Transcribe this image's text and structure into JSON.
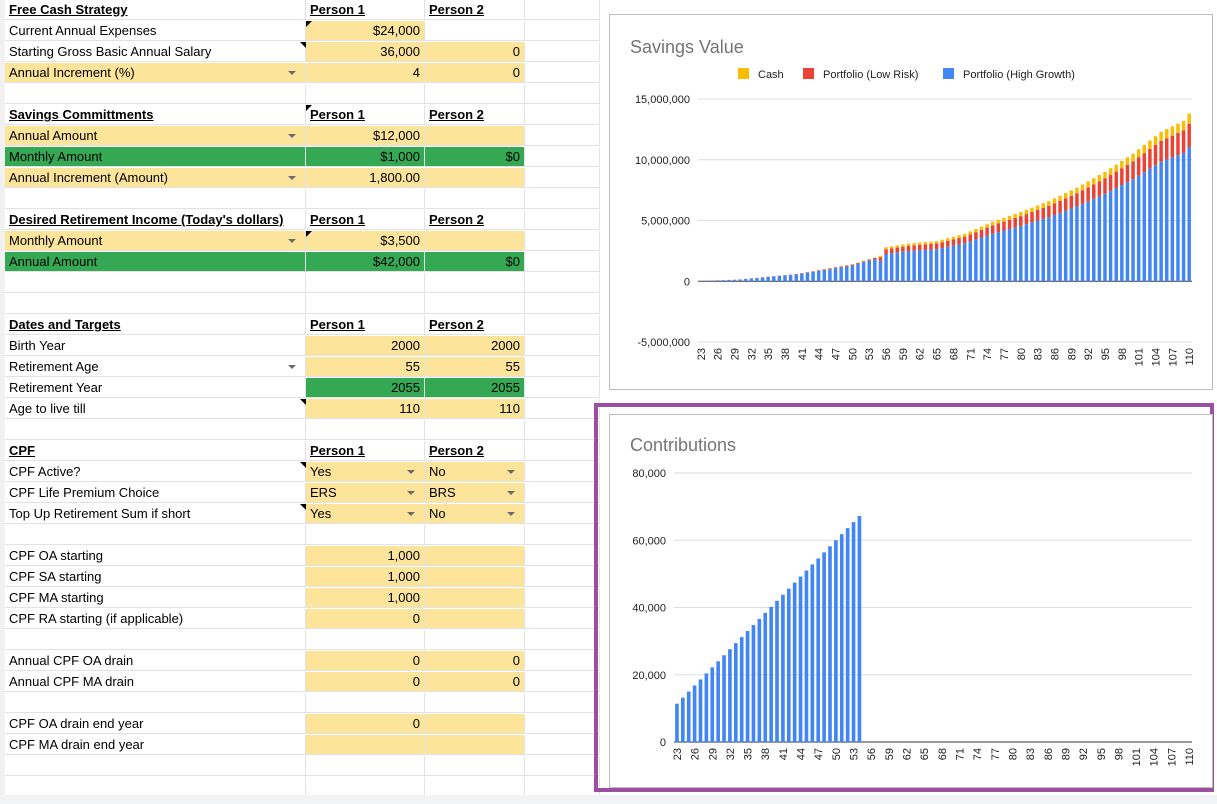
{
  "sheet": {
    "rows": [
      {
        "top": 0,
        "a": "Free Cash Strategy",
        "b": "Person 1",
        "c": "Person 2",
        "hdr": true
      },
      {
        "top": 21,
        "a": "Current Annual Expenses",
        "b": "$24,000",
        "c": "",
        "bcls": "yel",
        "ccls": "",
        "noteB": true
      },
      {
        "top": 42,
        "a": "Starting Gross Basic Annual Salary",
        "b": "36,000",
        "c": "0",
        "bcls": "yel",
        "ccls": "yel",
        "noteA": true
      },
      {
        "top": 63,
        "a": "Annual Increment (%)",
        "b": "4",
        "c": "0",
        "acls": "yel",
        "bcls": "yel",
        "ccls": "yel",
        "ddA": true
      },
      {
        "top": 84,
        "a": "",
        "b": "",
        "c": ""
      },
      {
        "top": 105,
        "a": "Savings Committments",
        "b": "Person 1",
        "c": "Person 2",
        "hdr": true,
        "noteB": true
      },
      {
        "top": 126,
        "a": "Annual Amount",
        "b": "$12,000",
        "c": "",
        "acls": "yel",
        "bcls": "yel",
        "ccls": "yel",
        "ddA": true
      },
      {
        "top": 147,
        "a": "Monthly Amount",
        "b": "$1,000",
        "c": "$0",
        "acls": "grn",
        "bcls": "grn",
        "ccls": "grn"
      },
      {
        "top": 168,
        "a": "Annual Increment (Amount)",
        "b": "1,800.00",
        "c": "",
        "acls": "yel",
        "bcls": "yel",
        "ccls": "yel",
        "ddA": true
      },
      {
        "top": 189,
        "a": "",
        "b": "",
        "c": ""
      },
      {
        "top": 210,
        "a": "Desired Retirement Income (Today's dollars)",
        "b": "Person 1",
        "c": "Person 2",
        "hdr": true
      },
      {
        "top": 231,
        "a": "Monthly Amount",
        "b": "$3,500",
        "c": "",
        "acls": "yel",
        "bcls": "yel",
        "ccls": "yel",
        "ddA": true,
        "noteB": true
      },
      {
        "top": 252,
        "a": "Annual Amount",
        "b": "$42,000",
        "c": "$0",
        "acls": "grn",
        "bcls": "grn",
        "ccls": "grn"
      },
      {
        "top": 273,
        "a": "",
        "b": "",
        "c": ""
      },
      {
        "top": 294,
        "a": "",
        "b": "",
        "c": ""
      },
      {
        "top": 315,
        "a": "Dates and Targets",
        "b": "Person 1",
        "c": "Person 2",
        "hdr": true
      },
      {
        "top": 336,
        "a": "Birth Year",
        "b": "2000",
        "c": "2000",
        "bcls": "yel",
        "ccls": "yel"
      },
      {
        "top": 357,
        "a": "Retirement Age",
        "b": "55",
        "c": "55",
        "bcls": "yel",
        "ccls": "yel",
        "ddA": true
      },
      {
        "top": 378,
        "a": "Retirement Year",
        "b": "2055",
        "c": "2055",
        "bcls": "grn",
        "ccls": "grn"
      },
      {
        "top": 399,
        "a": "Age to live till",
        "b": "110",
        "c": "110",
        "bcls": "yel",
        "ccls": "yel",
        "noteA": true
      },
      {
        "top": 420,
        "a": "",
        "b": "",
        "c": ""
      },
      {
        "top": 441,
        "a": "CPF",
        "b": "Person 1",
        "c": "Person 2",
        "hdr": true
      },
      {
        "top": 462,
        "a": "CPF Active?",
        "b": "Yes",
        "c": "No",
        "bcls": "yel",
        "ccls": "yel",
        "ddB": true,
        "ddC": true,
        "noteA": true,
        "left": true
      },
      {
        "top": 483,
        "a": "CPF Life Premium Choice",
        "b": "ERS",
        "c": "BRS",
        "bcls": "yel",
        "ccls": "yel",
        "ddB": true,
        "ddC": true,
        "left": true
      },
      {
        "top": 504,
        "a": "Top Up Retirement Sum if short",
        "b": "Yes",
        "c": "No",
        "bcls": "yel",
        "ccls": "yel",
        "ddB": true,
        "ddC": true,
        "noteA": true,
        "left": true
      },
      {
        "top": 525,
        "a": "",
        "b": "",
        "c": ""
      },
      {
        "top": 546,
        "a": "CPF OA starting",
        "b": "1,000",
        "c": "",
        "bcls": "yel",
        "ccls": "yel"
      },
      {
        "top": 567,
        "a": "CPF SA starting",
        "b": "1,000",
        "c": "",
        "bcls": "yel",
        "ccls": "yel"
      },
      {
        "top": 588,
        "a": "CPF MA starting",
        "b": "1,000",
        "c": "",
        "bcls": "yel",
        "ccls": "yel"
      },
      {
        "top": 609,
        "a": "CPF RA starting (if applicable)",
        "b": "0",
        "c": "",
        "bcls": "yel",
        "ccls": "yel"
      },
      {
        "top": 630,
        "a": "",
        "b": "",
        "c": ""
      },
      {
        "top": 651,
        "a": "Annual CPF OA drain",
        "b": "0",
        "c": "0",
        "bcls": "yel",
        "ccls": "yel"
      },
      {
        "top": 672,
        "a": "Annual CPF MA drain",
        "b": "0",
        "c": "0",
        "bcls": "yel",
        "ccls": "yel"
      },
      {
        "top": 693,
        "a": "",
        "b": "",
        "c": ""
      },
      {
        "top": 714,
        "a": "CPF OA drain end year",
        "b": "0",
        "c": "",
        "bcls": "yel",
        "ccls": "yel"
      },
      {
        "top": 735,
        "a": "CPF MA drain end year",
        "b": "",
        "c": "",
        "bcls": "yel",
        "ccls": "yel"
      },
      {
        "top": 756,
        "a": "",
        "b": "",
        "c": ""
      },
      {
        "top": 777,
        "a": "",
        "b": "",
        "c": ""
      }
    ]
  },
  "chart_data": [
    {
      "type": "bar",
      "stacked": true,
      "title": "Savings Value",
      "legend_position": "top",
      "categories_from": 23,
      "categories_to": 110,
      "tick_labels": [
        "23",
        "26",
        "29",
        "32",
        "35",
        "38",
        "41",
        "44",
        "47",
        "50",
        "53",
        "56",
        "59",
        "62",
        "65",
        "68",
        "71",
        "74",
        "77",
        "80",
        "83",
        "86",
        "89",
        "92",
        "95",
        "98",
        "101",
        "104",
        "107",
        "110"
      ],
      "ylim": [
        -5000000,
        15000000
      ],
      "yticks": [
        "15,000,000",
        "10,000,000",
        "5,000,000",
        "0",
        "-5,000,000"
      ],
      "series": [
        {
          "name": "Cash",
          "color": "#fbbc04"
        },
        {
          "name": "Portfolio (Low Risk)",
          "color": "#ea4335"
        },
        {
          "name": "Portfolio (High Growth)",
          "color": "#4285f4"
        }
      ],
      "approx_totals": [
        [
          23,
          20000
        ],
        [
          30,
          150000
        ],
        [
          40,
          600000
        ],
        [
          50,
          1400000
        ],
        [
          55,
          2100000
        ],
        [
          56,
          2800000
        ],
        [
          60,
          3100000
        ],
        [
          65,
          3300000
        ],
        [
          70,
          3900000
        ],
        [
          75,
          4900000
        ],
        [
          80,
          5700000
        ],
        [
          85,
          6600000
        ],
        [
          90,
          7700000
        ],
        [
          95,
          9000000
        ],
        [
          100,
          10500000
        ],
        [
          105,
          12300000
        ],
        [
          109,
          13200000
        ],
        [
          110,
          13800000
        ]
      ]
    },
    {
      "type": "bar",
      "title": "Contributions",
      "categories_from": 23,
      "categories_to": 110,
      "tick_labels": [
        "23",
        "26",
        "29",
        "32",
        "35",
        "38",
        "41",
        "44",
        "47",
        "50",
        "53",
        "56",
        "59",
        "62",
        "65",
        "68",
        "71",
        "74",
        "77",
        "80",
        "83",
        "86",
        "89",
        "92",
        "95",
        "98",
        "101",
        "104",
        "107",
        "110"
      ],
      "ylim": [
        0,
        80000
      ],
      "yticks": [
        "80,000",
        "60,000",
        "40,000",
        "20,000",
        "0"
      ],
      "series": [
        {
          "color": "#4285f4",
          "first_age": 23,
          "last_age": 54,
          "start_value": 11400,
          "step_value": 1800
        }
      ]
    }
  ]
}
